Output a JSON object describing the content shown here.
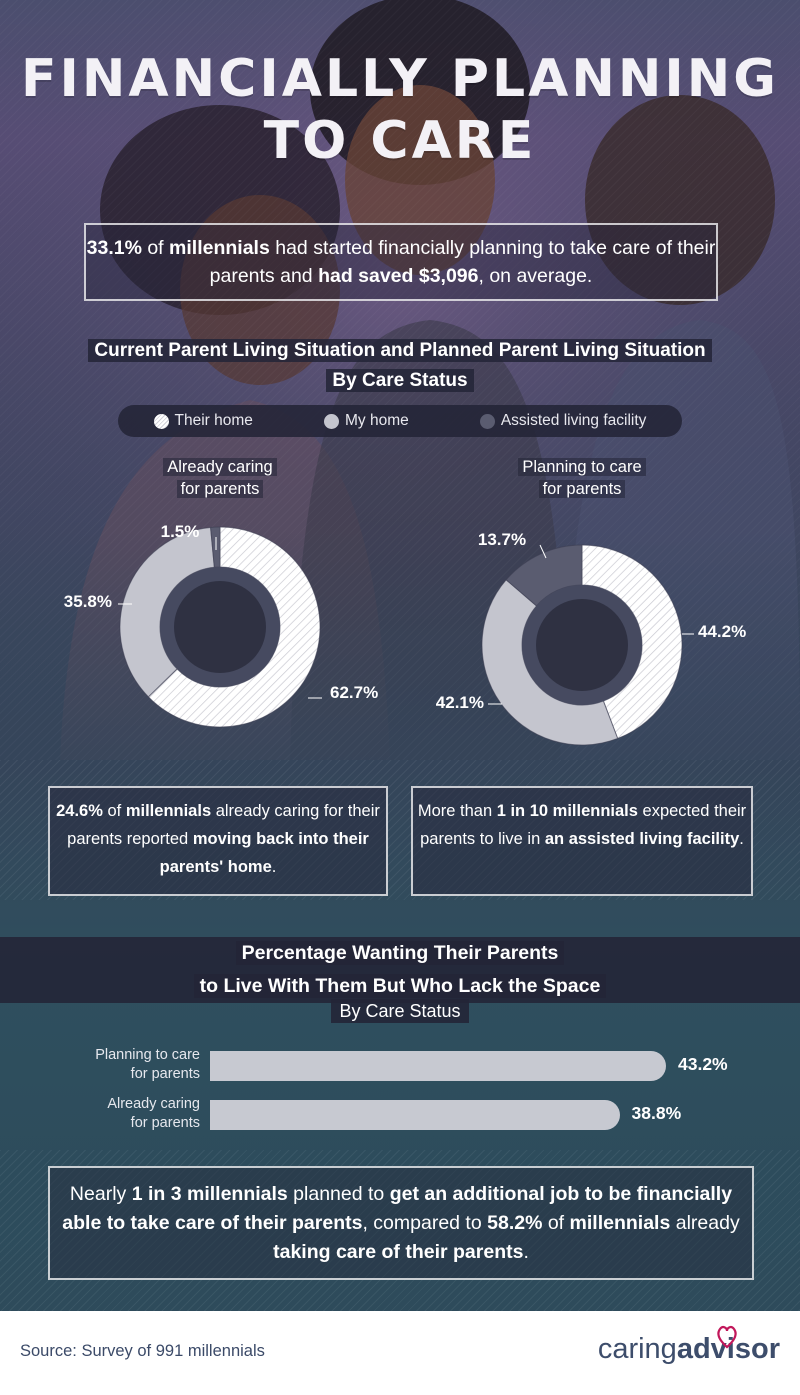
{
  "header": {
    "title_line1": "FINANCIALLY PLANNING",
    "title_line2": "TO CARE"
  },
  "lead": {
    "part1": "33.1%",
    "part2": " of ",
    "part3": "millennials",
    "part4": " had started financially planning to take care of their parents and ",
    "part5": "had saved $3,096",
    "part6": ", on average."
  },
  "section1": {
    "title_line1": "Current Parent Living Situation and Planned Parent Living Situation",
    "title_line2": "By Care Status"
  },
  "legend": {
    "items": [
      "Their home",
      "My home",
      "Assisted living facility"
    ]
  },
  "chart_data": [
    {
      "type": "pie",
      "title": "Already caring for parents",
      "title_line1": "Already caring",
      "title_line2": "for parents",
      "categories": [
        "Their home",
        "My home",
        "Assisted living facility"
      ],
      "values": [
        62.7,
        35.8,
        1.5
      ],
      "labels": [
        "62.7%",
        "35.8%",
        "1.5%"
      ]
    },
    {
      "type": "pie",
      "title": "Planning to care for parents",
      "title_line1": "Planning to care",
      "title_line2": "for parents",
      "categories": [
        "Their home",
        "My home",
        "Assisted living facility"
      ],
      "values": [
        44.2,
        42.1,
        13.7
      ],
      "labels": [
        "44.2%",
        "42.1%",
        "13.7%"
      ]
    },
    {
      "type": "bar",
      "title_line1": "Percentage Wanting Their Parents",
      "title_line2": "to Live With Them But Who Lack the Space",
      "subtitle": "By Care Status",
      "categories": [
        "Planning to care for parents",
        "Already caring for parents"
      ],
      "category_lines": [
        [
          "Planning to care",
          "for parents"
        ],
        [
          "Already caring",
          "for parents"
        ]
      ],
      "values": [
        43.2,
        38.8
      ],
      "labels": [
        "43.2%",
        "38.8%"
      ]
    }
  ],
  "notes": {
    "left": {
      "p1": "24.6%",
      "p2": " of ",
      "p3": "millennials",
      "p4": " already caring for their parents reported ",
      "p5": "moving back into their parents' home",
      "p6": "."
    },
    "right": {
      "p1": "More than ",
      "p2": "1 in 10 millennials",
      "p3": " expected their parents to live in ",
      "p4": "an assisted living facility",
      "p5": "."
    }
  },
  "bottom_note": {
    "p1": "Nearly ",
    "p2": "1 in 3 millennials",
    "p3": " planned to ",
    "p4": "get an additional job to be financially able to take care of their parents",
    "p5": ", compared to ",
    "p6": "58.2%",
    "p7": " of ",
    "p8": "millennials",
    "p9": " already ",
    "p10": "taking care of their parents",
    "p11": "."
  },
  "footer": {
    "source": "Source: Survey of 991 millennials",
    "brand_caring": "caring",
    "brand_advisor": "advisor"
  },
  "colors": {
    "their_home": "#f1f1f4",
    "my_home": "#c4c5ce",
    "assisted": "#5a5c70",
    "bar": "#c7c9d1"
  },
  "icons": [
    "hatched-dot-icon",
    "heart-logo-icon"
  ]
}
